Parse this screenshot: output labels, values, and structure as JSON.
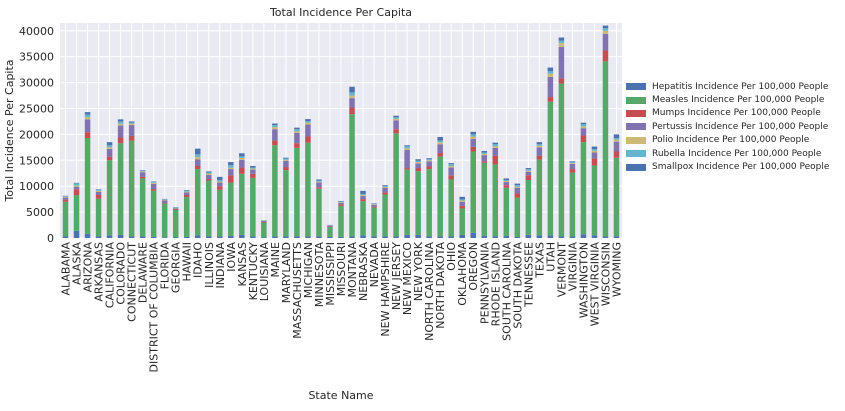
{
  "chart_data": {
    "type": "bar",
    "stacked": true,
    "title": "Total Incidence Per Capita",
    "xlabel": "State Name",
    "ylabel": "Total Incidence Per Capita",
    "ylim": [
      0,
      41500
    ],
    "yticks": [
      0,
      5000,
      10000,
      15000,
      20000,
      25000,
      30000,
      35000,
      40000
    ],
    "grid": true,
    "legend_position": "right",
    "categories": [
      "ALABAMA",
      "ALASKA",
      "ARIZONA",
      "ARKANSAS",
      "CALIFORNIA",
      "COLORADO",
      "CONNECTICUT",
      "DELAWARE",
      "DISTRICT OF COLUMBIA",
      "FLORIDA",
      "GEORGIA",
      "HAWAII",
      "IDAHO",
      "ILLINOIS",
      "INDIANA",
      "IOWA",
      "KANSAS",
      "KENTUCKY",
      "LOUISIANA",
      "MAINE",
      "MARYLAND",
      "MASSACHUSETTS",
      "MICHIGAN",
      "MINNESOTA",
      "MISSISSIPPI",
      "MISSOURI",
      "MONTANA",
      "NEBRASKA",
      "NEVADA",
      "NEW HAMPSHIRE",
      "NEW JERSEY",
      "NEW MEXICO",
      "NEW YORK",
      "NORTH CAROLINA",
      "NORTH DAKOTA",
      "OHIO",
      "OKLAHOMA",
      "OREGON",
      "PENNSYLVANIA",
      "RHODE ISLAND",
      "SOUTH CAROLINA",
      "SOUTH DAKOTA",
      "TENNESSEE",
      "TEXAS",
      "UTAH",
      "VERMONT",
      "VIRGINIA",
      "WASHINGTON",
      "WEST VIRGINIA",
      "WISCONSIN",
      "WYOMING"
    ],
    "series": [
      {
        "name": "Hepatitis Incidence Per 100,000 People",
        "color": "#4c72b0",
        "values": [
          300,
          1400,
          800,
          300,
          500,
          600,
          300,
          300,
          250,
          150,
          100,
          200,
          500,
          300,
          300,
          400,
          600,
          300,
          100,
          300,
          300,
          300,
          300,
          300,
          200,
          200,
          300,
          500,
          300,
          300,
          300,
          600,
          600,
          300,
          300,
          300,
          600,
          1000,
          400,
          300,
          400,
          200,
          600,
          500,
          500,
          300,
          300,
          700,
          500,
          300,
          300
        ]
      },
      {
        "name": "Measles Incidence Per 100,000 People",
        "color": "#55a868",
        "values": [
          6700,
          6900,
          18500,
          7300,
          14500,
          17700,
          18500,
          11200,
          8900,
          6500,
          5300,
          7700,
          12800,
          10800,
          9000,
          10300,
          11800,
          11300,
          2900,
          17600,
          12800,
          17100,
          18100,
          9200,
          1900,
          6000,
          23600,
          6600,
          5600,
          8100,
          19900,
          12600,
          12300,
          13000,
          15400,
          11000,
          5100,
          15700,
          14100,
          13900,
          9300,
          7600,
          10600,
          14600,
          25800,
          29500,
          12300,
          17800,
          13500,
          33800,
          15200
        ]
      },
      {
        "name": "Mumps Incidence Per 100,000 People",
        "color": "#c44e52",
        "values": [
          400,
          1100,
          1100,
          700,
          700,
          1100,
          900,
          300,
          300,
          100,
          100,
          400,
          600,
          300,
          700,
          1400,
          1200,
          800,
          100,
          900,
          600,
          900,
          1200,
          300,
          100,
          300,
          1300,
          400,
          200,
          400,
          800,
          300,
          600,
          500,
          700,
          800,
          500,
          900,
          300,
          1700,
          500,
          800,
          900,
          800,
          900,
          1000,
          700,
          1300,
          1400,
          2100,
          1200
        ]
      },
      {
        "name": "Pertussis Incidence Per 100,000 People",
        "color": "#8172b2",
        "values": [
          400,
          500,
          2500,
          600,
          1500,
          2300,
          2100,
          900,
          1000,
          500,
          200,
          500,
          1300,
          800,
          700,
          1200,
          1500,
          800,
          200,
          2200,
          1200,
          2000,
          2300,
          900,
          200,
          300,
          1800,
          600,
          300,
          900,
          1700,
          3500,
          900,
          1000,
          1700,
          1500,
          800,
          1500,
          1200,
          1500,
          600,
          1100,
          700,
          1600,
          3900,
          6100,
          1000,
          1400,
          1100,
          3200,
          1900
        ]
      },
      {
        "name": "Polio Incidence Per 100,000 People",
        "color": "#ccb974",
        "values": [
          150,
          250,
          400,
          200,
          300,
          350,
          300,
          150,
          200,
          100,
          100,
          150,
          450,
          250,
          200,
          250,
          350,
          200,
          80,
          400,
          200,
          300,
          350,
          150,
          60,
          100,
          500,
          200,
          100,
          150,
          300,
          300,
          250,
          200,
          400,
          300,
          250,
          500,
          250,
          300,
          200,
          200,
          200,
          300,
          600,
          700,
          150,
          350,
          350,
          600,
          400
        ]
      },
      {
        "name": "Rubella Incidence Per 100,000 People",
        "color": "#64b5cd",
        "values": [
          100,
          400,
          500,
          200,
          400,
          450,
          200,
          150,
          150,
          150,
          100,
          200,
          500,
          200,
          300,
          500,
          300,
          200,
          50,
          400,
          250,
          400,
          300,
          250,
          50,
          150,
          600,
          200,
          100,
          200,
          300,
          400,
          250,
          200,
          300,
          350,
          200,
          400,
          250,
          400,
          200,
          300,
          300,
          300,
          500,
          500,
          200,
          400,
          300,
          500,
          300
        ]
      },
      {
        "name": "Smallpox Incidence Per 100,000 People",
        "color": "#4c72b0",
        "values": [
          100,
          100,
          500,
          100,
          600,
          400,
          200,
          100,
          100,
          50,
          50,
          100,
          1100,
          200,
          600,
          600,
          600,
          300,
          20,
          300,
          150,
          300,
          400,
          200,
          20,
          100,
          1100,
          600,
          100,
          150,
          300,
          200,
          300,
          200,
          700,
          200,
          500,
          500,
          300,
          300,
          300,
          300,
          200,
          400,
          700,
          600,
          150,
          300,
          500,
          500,
          700
        ]
      }
    ]
  }
}
